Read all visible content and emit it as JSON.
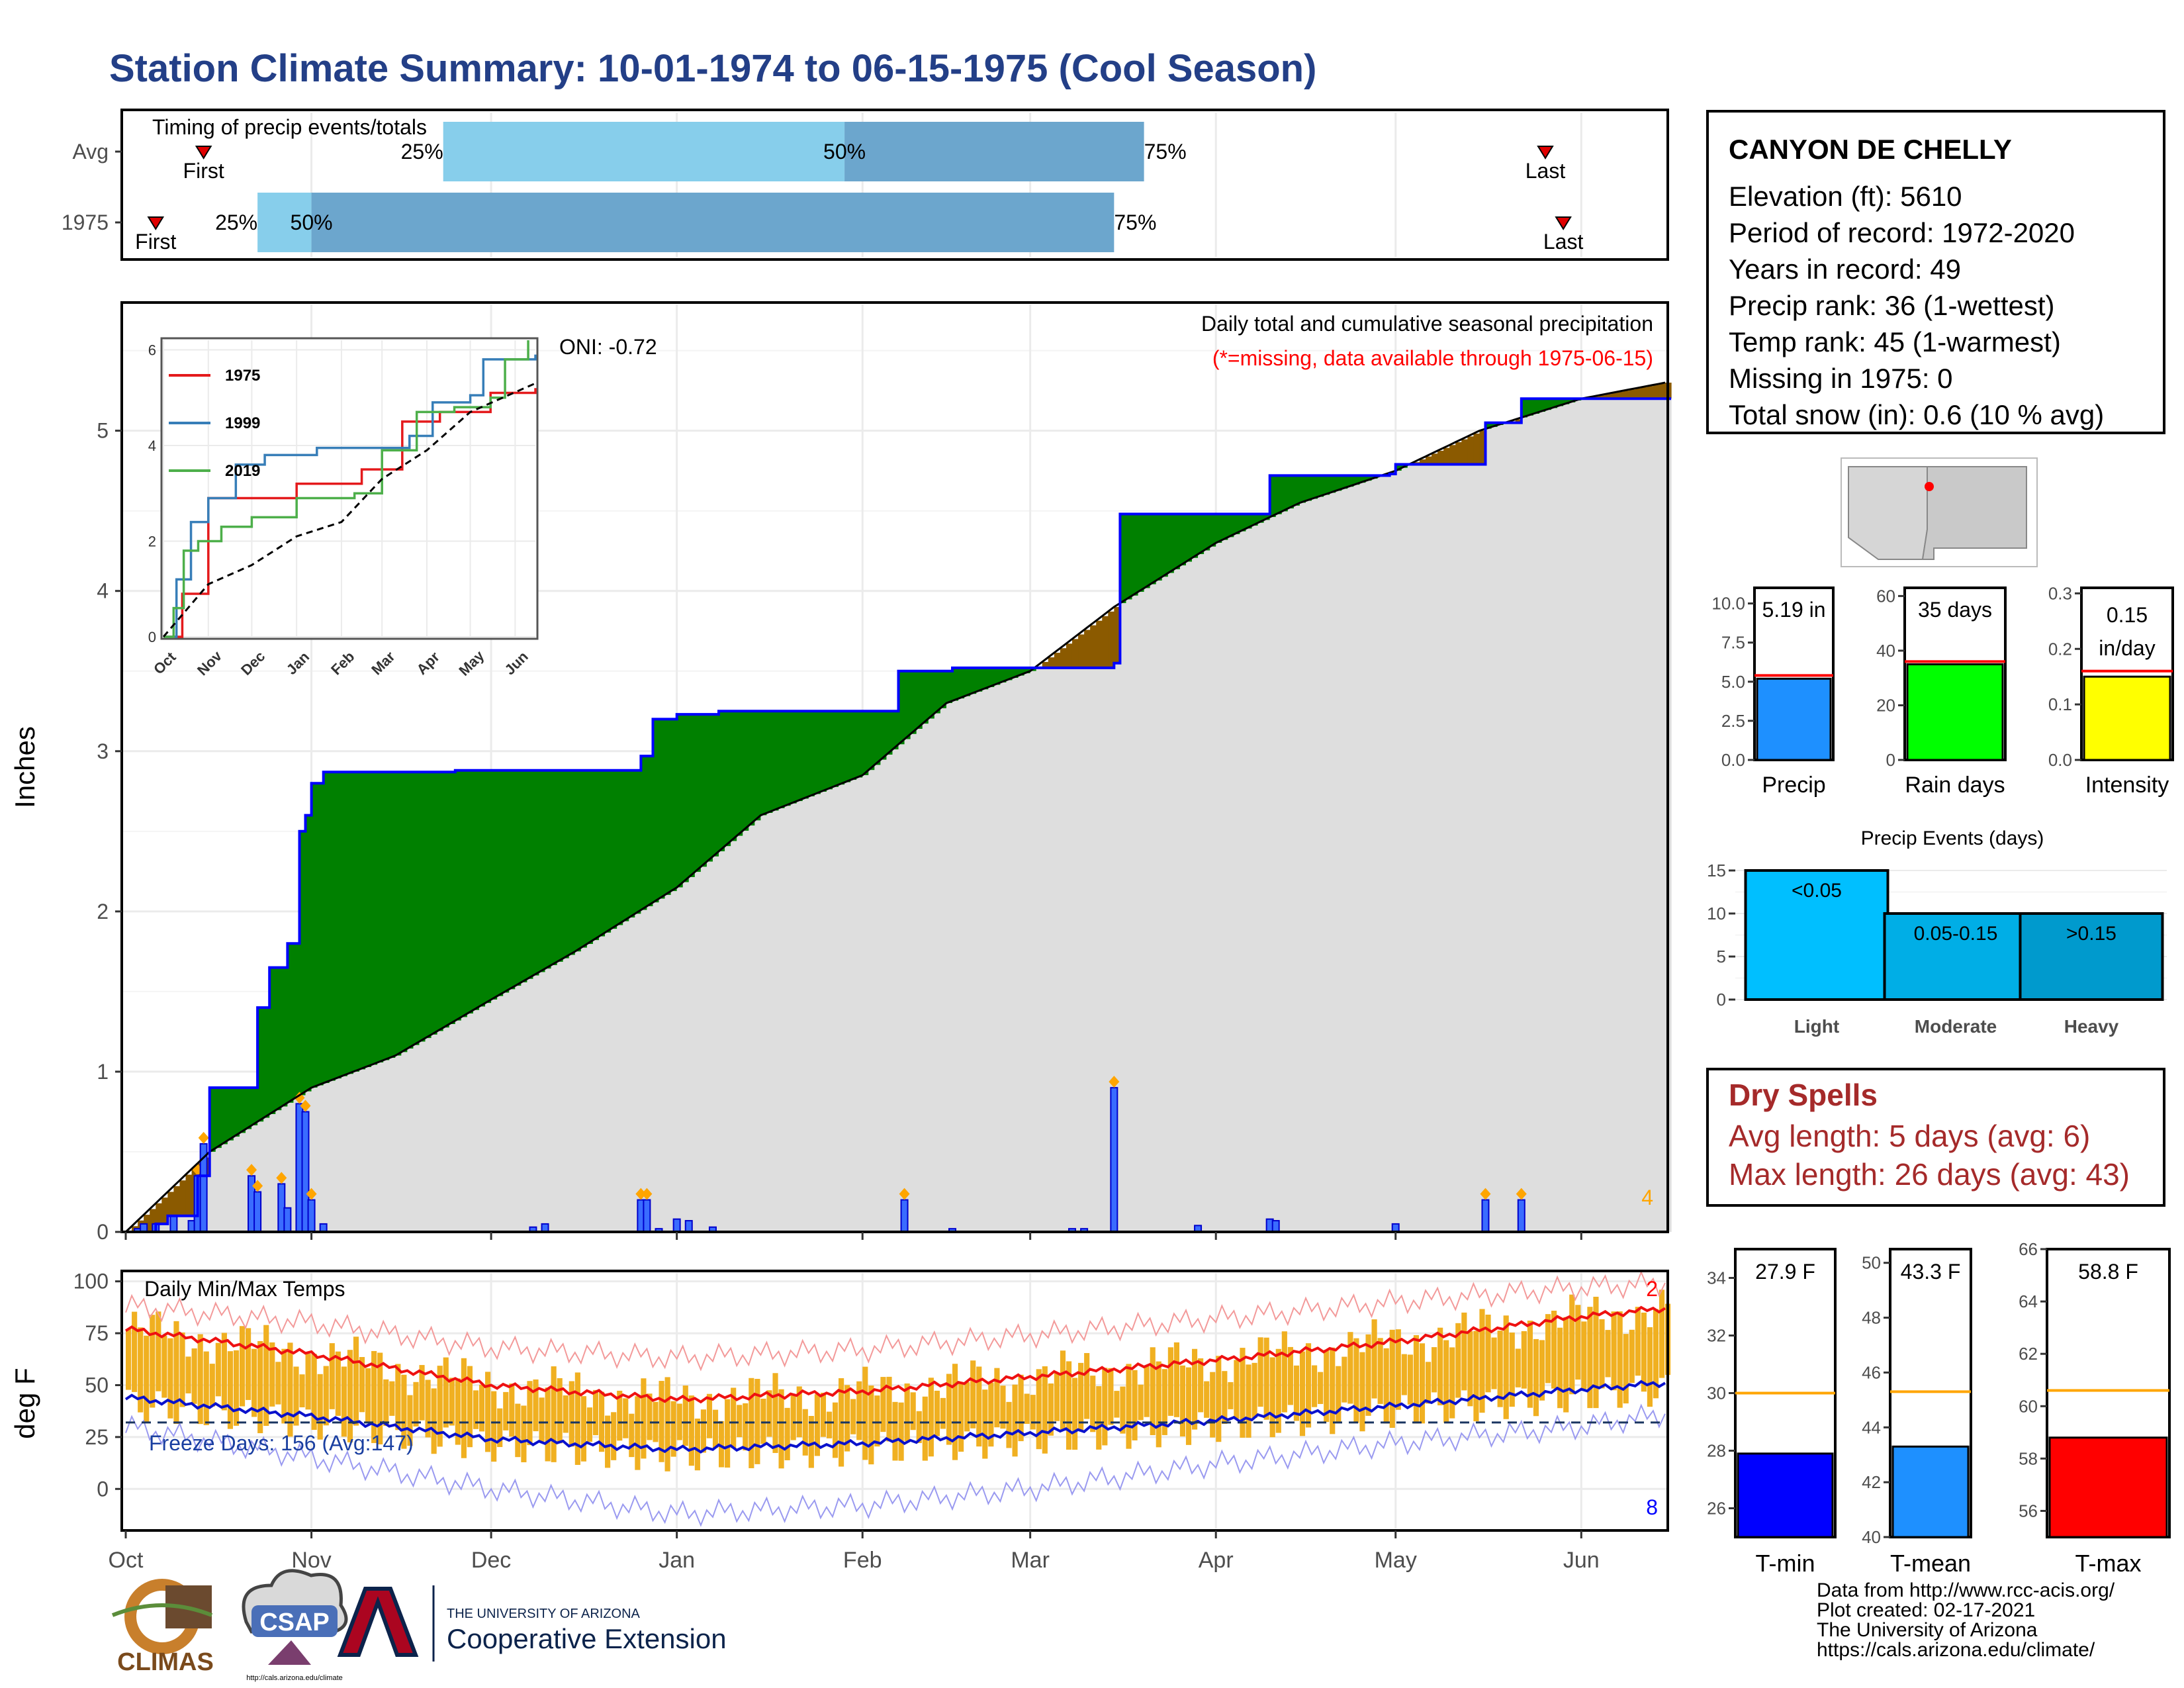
{
  "title": "Station Climate Summary: 10-01-1974 to 06-15-1975 (Cool Season)",
  "timing": {
    "label": "Timing of precip events/totals",
    "rows": [
      {
        "name": "Avg",
        "first_date": "1974-10-14",
        "last_date": "1975-05-26",
        "q25": "1974-11-23",
        "q50": "1975-01-29",
        "q75": "1975-03-20",
        "first_label": "First",
        "last_label": "Last",
        "q25_label": "25%",
        "q50_label": "50%",
        "q75_label": "75%"
      },
      {
        "name": "1975",
        "first_date": "1974-10-06",
        "last_date": "1975-05-29",
        "q25": "1974-10-23",
        "q50": "1974-11-01",
        "q75": "1975-03-15",
        "first_label": "First",
        "last_label": "Last",
        "q25_label": "25%",
        "q50_label": "50%",
        "q75_label": "75%"
      }
    ]
  },
  "station": {
    "name": "CANYON DE CHELLY",
    "lines": [
      "Elevation (ft): 5610",
      "Period of record: 1972-2020",
      "Years in record: 49",
      "Precip rank: 36 (1-wettest)",
      "Temp rank: 45 (1-warmest)",
      "Missing in 1975: 0",
      "Total snow (in): 0.6 (10 % avg)"
    ]
  },
  "precip": {
    "ylabel": "Inches",
    "header": "Daily total and cumulative seasonal precipitation",
    "missing_note": "(*=missing, data available through 1975-06-15)",
    "oni": "ONI: -0.72",
    "corner_count": "4",
    "yticks": [
      "0",
      "1",
      "2",
      "3",
      "4",
      "5"
    ],
    "colors": {
      "obs_line": "#0000ff",
      "avg_line": "#000000",
      "above": "#008000",
      "below": "#8b5a00",
      "shade": "#dedede",
      "daily_bar": "#1e3cff",
      "marker": "#ffa500"
    }
  },
  "inset": {
    "legend": [
      "1975",
      "1999",
      "2019"
    ],
    "colors": {
      "1975": "#e41a1c",
      "1999": "#377eb8",
      "2019": "#4daf4a"
    },
    "yticks": [
      "0",
      "2",
      "4",
      "6"
    ],
    "months": [
      "Oct",
      "Nov",
      "Dec",
      "Jan",
      "Feb",
      "Mar",
      "Apr",
      "May",
      "Jun"
    ]
  },
  "temps": {
    "ylabel": "deg F",
    "label": "Daily Min/Max Temps",
    "freeze": "Freeze Days: 156 (Avg:147)",
    "count_top": "2",
    "count_bottom": "8",
    "yticks": [
      "0",
      "25",
      "50",
      "75",
      "100"
    ],
    "colors": {
      "bar": "#f0b021",
      "max": "#ee1111",
      "min": "#0a11cc",
      "record_max": "#f39a9a",
      "record_min": "#9a9af0"
    }
  },
  "months": [
    "Oct",
    "Nov",
    "Dec",
    "Jan",
    "Feb",
    "Mar",
    "Apr",
    "May",
    "Jun"
  ],
  "summary_bars": [
    {
      "name": "Precip",
      "value": 5.19,
      "avg": 5.4,
      "label": "5.19 in",
      "yticks": [
        "0.0",
        "2.5",
        "5.0",
        "7.5",
        "10.0"
      ],
      "ymax": 11,
      "color": "#1e90ff"
    },
    {
      "name": "Rain days",
      "value": 35,
      "avg": 36,
      "label": "35 days",
      "yticks": [
        "0",
        "20",
        "40",
        "60"
      ],
      "ymax": 63,
      "color": "#00ff00"
    },
    {
      "name": "Intensity",
      "value": 0.15,
      "avg": 0.16,
      "label": "0.15 in/day",
      "label1": "0.15",
      "label2": "in/day",
      "yticks": [
        "0.0",
        "0.1",
        "0.2",
        "0.3"
      ],
      "ymax": 0.31,
      "color": "#ffff00"
    }
  ],
  "events": {
    "title": "Precip Events (days)",
    "yticks": [
      "0",
      "5",
      "10",
      "15"
    ],
    "ymax": 16,
    "bars": [
      {
        "name": "Light",
        "label": "<0.05",
        "value": 15,
        "color": "#00bfff"
      },
      {
        "name": "Moderate",
        "label": "0.05-0.15",
        "value": 10,
        "color": "#00aee6"
      },
      {
        "name": "Heavy",
        "label": ">0.15",
        "value": 10,
        "color": "#009acd"
      }
    ]
  },
  "dry_spells": {
    "title": "Dry Spells",
    "avg_length": "Avg length: 5 days (avg: 6)",
    "max_length": "Max length: 26 days (avg: 43)"
  },
  "temp_bars": [
    {
      "name": "T-min",
      "value": 27.9,
      "avg": 30.0,
      "label": "27.9 F",
      "ylim": [
        25,
        35
      ],
      "yticks": [
        "26",
        "28",
        "30",
        "32",
        "34"
      ],
      "color": "#0000ff"
    },
    {
      "name": "T-mean",
      "value": 43.3,
      "avg": 45.3,
      "label": "43.3 F",
      "ylim": [
        40,
        50.5
      ],
      "yticks": [
        "40",
        "42",
        "44",
        "46",
        "48",
        "50"
      ],
      "color": "#1e90ff"
    },
    {
      "name": "T-max",
      "value": 58.8,
      "avg": 60.6,
      "label": "58.8 F",
      "ylim": [
        55,
        66
      ],
      "yticks": [
        "56",
        "58",
        "60",
        "62",
        "64",
        "66"
      ],
      "color": "#ff0000"
    }
  ],
  "logos": {
    "climas": "CLIMAS",
    "csap": "CSAP",
    "csap_url": "http://cals.arizona.edu/climate",
    "ua_small": "THE UNIVERSITY OF ARIZONA",
    "ua_big": "Cooperative Extension"
  },
  "credits": [
    "Data from http://www.rcc-acis.org/",
    "Plot created: 02-17-2021",
    "The University of Arizona",
    "https://cals.arizona.edu/climate/"
  ],
  "chart_data": [
    {
      "type": "area",
      "title": "Daily total and cumulative seasonal precipitation",
      "ylabel": "Inches",
      "ylim": [
        0,
        5.8
      ],
      "x_range": [
        "1974-10-01",
        "1975-06-15"
      ],
      "series": [
        {
          "name": "1975",
          "x": [
            "1974-10-01",
            "1974-10-06",
            "1974-10-08",
            "1974-10-13",
            "1974-10-15",
            "1974-10-23",
            "1974-10-25",
            "1974-10-28",
            "1974-10-30",
            "1974-10-31",
            "1974-11-01",
            "1974-11-03",
            "1974-11-25",
            "1974-12-10",
            "1974-12-26",
            "1974-12-28",
            "1975-01-01",
            "1975-01-08",
            "1975-02-07",
            "1975-02-16",
            "1975-03-10",
            "1975-03-15",
            "1975-03-16",
            "1975-03-30",
            "1975-04-10",
            "1975-04-11",
            "1975-04-30",
            "1975-05-01",
            "1975-05-16",
            "1975-05-22",
            "1975-06-15"
          ],
          "y": [
            0,
            0.05,
            0.1,
            0.35,
            0.9,
            1.4,
            1.65,
            1.8,
            2.5,
            2.6,
            2.8,
            2.87,
            2.88,
            2.88,
            2.97,
            3.2,
            3.23,
            3.25,
            3.5,
            3.52,
            3.52,
            3.55,
            4.48,
            4.48,
            4.72,
            4.72,
            4.73,
            4.79,
            5.05,
            5.2,
            5.2
          ]
        },
        {
          "name": "Average cumulative",
          "x": [
            "1974-10-01",
            "1974-10-15",
            "1974-11-01",
            "1974-11-15",
            "1974-12-01",
            "1974-12-15",
            "1975-01-01",
            "1975-01-15",
            "1975-02-01",
            "1975-02-15",
            "1975-03-01",
            "1975-03-15",
            "1975-04-01",
            "1975-04-15",
            "1975-05-01",
            "1975-05-15",
            "1975-06-01",
            "1975-06-15"
          ],
          "y": [
            0,
            0.5,
            0.9,
            1.1,
            1.45,
            1.75,
            2.15,
            2.6,
            2.85,
            3.3,
            3.5,
            3.9,
            4.3,
            4.55,
            4.75,
            5.0,
            5.2,
            5.3
          ]
        }
      ],
      "daily": {
        "x": [
          "1974-10-03",
          "1974-10-04",
          "1974-10-06",
          "1974-10-09",
          "1974-10-12",
          "1974-10-13",
          "1974-10-14",
          "1974-10-22",
          "1974-10-23",
          "1974-10-27",
          "1974-10-28",
          "1974-10-30",
          "1974-10-31",
          "1974-11-01",
          "1974-11-03",
          "1974-12-08",
          "1974-12-10",
          "1974-12-26",
          "1974-12-27",
          "1974-12-29",
          "1975-01-01",
          "1975-01-03",
          "1975-01-07",
          "1975-02-08",
          "1975-02-16",
          "1975-03-08",
          "1975-03-10",
          "1975-03-15",
          "1975-03-29",
          "1975-04-10",
          "1975-04-11",
          "1975-05-01",
          "1975-05-16",
          "1975-05-22"
        ],
        "y": [
          0.02,
          0.05,
          0.05,
          0.1,
          0.07,
          0.35,
          0.55,
          0.35,
          0.25,
          0.3,
          0.15,
          0.8,
          0.75,
          0.2,
          0.05,
          0.03,
          0.05,
          0.2,
          0.2,
          0.02,
          0.08,
          0.07,
          0.03,
          0.2,
          0.02,
          0.02,
          0.02,
          0.9,
          0.04,
          0.08,
          0.07,
          0.05,
          0.2,
          0.2
        ]
      },
      "annotations": [
        "ONI: -0.72",
        "(*=missing, data available through 1975-06-15)"
      ]
    },
    {
      "type": "line",
      "title": "",
      "ylim": [
        0,
        6.2
      ],
      "x_range": [
        "1974-10-01",
        "1975-06-15"
      ],
      "series": [
        {
          "name": "1975",
          "x": [
            "1974-10-01",
            "1974-10-14",
            "1974-11-01",
            "1974-12-10",
            "1975-01-01",
            "1975-02-15",
            "1975-03-15",
            "1975-04-10",
            "1975-05-15",
            "1975-06-15"
          ],
          "y": [
            0,
            0.9,
            2.9,
            2.9,
            3.2,
            3.5,
            4.5,
            4.7,
            5.1,
            5.2
          ]
        },
        {
          "name": "1999",
          "x": [
            "1974-10-01",
            "1974-10-10",
            "1974-10-20",
            "1974-11-01",
            "1974-11-20",
            "1974-12-10",
            "1975-01-15",
            "1975-02-10",
            "1975-03-20",
            "1975-04-05",
            "1975-05-01",
            "1975-05-10",
            "1975-06-15"
          ],
          "y": [
            0,
            1.2,
            2.4,
            2.9,
            3.6,
            3.8,
            3.95,
            3.95,
            4.2,
            4.9,
            5.05,
            5.8,
            5.9
          ]
        },
        {
          "name": "2019",
          "x": [
            "1974-10-01",
            "1974-10-08",
            "1974-10-15",
            "1974-10-25",
            "1974-11-10",
            "1974-12-01",
            "1975-01-01",
            "1975-02-10",
            "1975-03-01",
            "1975-03-25",
            "1975-04-20",
            "1975-05-15",
            "1975-05-25",
            "1975-06-10"
          ],
          "y": [
            0,
            0.6,
            1.8,
            2.0,
            2.3,
            2.5,
            2.9,
            3.0,
            3.9,
            4.7,
            4.8,
            5.0,
            5.8,
            6.2
          ]
        },
        {
          "name": "Average",
          "x": [
            "1974-10-01",
            "1974-11-01",
            "1974-12-01",
            "1975-01-01",
            "1975-02-01",
            "1975-03-01",
            "1975-04-01",
            "1975-05-01",
            "1975-06-15"
          ],
          "y": [
            0,
            1.1,
            1.5,
            2.1,
            2.4,
            3.3,
            3.9,
            4.7,
            5.3
          ]
        }
      ]
    },
    {
      "type": "line",
      "title": "Daily Min/Max Temps",
      "ylabel": "deg F",
      "ylim": [
        -20,
        105
      ],
      "x_range": [
        "1974-10-01",
        "1975-06-15"
      ],
      "series": [
        {
          "name": "Average max",
          "x": [
            "1974-10-01",
            "1974-11-01",
            "1974-12-01",
            "1975-01-01",
            "1975-02-01",
            "1975-03-01",
            "1975-04-01",
            "1975-05-01",
            "1975-06-01",
            "1975-06-15"
          ],
          "y": [
            77,
            65,
            50,
            43,
            47,
            54,
            62,
            71,
            83,
            87
          ]
        },
        {
          "name": "Average min",
          "x": [
            "1974-10-01",
            "1974-11-01",
            "1974-12-01",
            "1975-01-01",
            "1975-02-01",
            "1975-03-01",
            "1975-04-01",
            "1975-05-01",
            "1975-06-01",
            "1975-06-15"
          ],
          "y": [
            44,
            35,
            24,
            19,
            22,
            27,
            33,
            40,
            48,
            51
          ]
        },
        {
          "name": "Record max",
          "x": [
            "1974-10-01",
            "1974-11-01",
            "1974-12-01",
            "1975-01-01",
            "1975-02-01",
            "1975-03-01",
            "1975-04-01",
            "1975-05-01",
            "1975-06-01",
            "1975-06-15"
          ],
          "y": [
            88,
            80,
            68,
            63,
            67,
            74,
            82,
            90,
            97,
            99
          ]
        },
        {
          "name": "Record min",
          "x": [
            "1974-10-01",
            "1974-11-01",
            "1974-12-01",
            "1975-01-01",
            "1975-02-01",
            "1975-03-01",
            "1975-04-01",
            "1975-05-01",
            "1975-06-01",
            "1975-06-15"
          ],
          "y": [
            30,
            15,
            0,
            -12,
            -8,
            0,
            12,
            22,
            30,
            36
          ]
        }
      ],
      "annotations": [
        "Freeze Days: 156 (Avg:147)"
      ]
    },
    {
      "type": "bar",
      "categories": [
        "Precip"
      ],
      "values": [
        5.19
      ],
      "ylim": [
        0,
        11
      ]
    },
    {
      "type": "bar",
      "categories": [
        "Rain days"
      ],
      "values": [
        35
      ],
      "ylim": [
        0,
        63
      ]
    },
    {
      "type": "bar",
      "categories": [
        "Intensity"
      ],
      "values": [
        0.15
      ],
      "ylim": [
        0,
        0.31
      ]
    },
    {
      "type": "bar",
      "title": "Precip Events (days)",
      "categories": [
        "Light",
        "Moderate",
        "Heavy"
      ],
      "values": [
        15,
        10,
        10
      ],
      "ylim": [
        0,
        16
      ]
    },
    {
      "type": "bar",
      "categories": [
        "T-min"
      ],
      "values": [
        27.9
      ],
      "ylim": [
        25,
        35
      ]
    },
    {
      "type": "bar",
      "categories": [
        "T-mean"
      ],
      "values": [
        43.3
      ],
      "ylim": [
        40,
        50.5
      ]
    },
    {
      "type": "bar",
      "categories": [
        "T-max"
      ],
      "values": [
        58.8
      ],
      "ylim": [
        55,
        66
      ]
    }
  ]
}
